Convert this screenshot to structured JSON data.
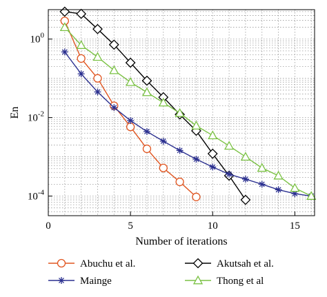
{
  "chart_data": {
    "type": "line",
    "xlabel": "Number of iterations",
    "ylabel": "En",
    "xlim": [
      0,
      16.2
    ],
    "ylim_log10": [
      -4.5,
      0.75
    ],
    "yscale": "log",
    "grid": true,
    "legend_position": "bottom",
    "x_ticks": [
      0,
      5,
      10,
      15
    ],
    "x_tick_labels": [
      "0",
      "5",
      "10",
      "15"
    ],
    "y_ticks": [
      1,
      0.01,
      0.0001
    ],
    "y_tick_labels": [
      {
        "base": "10",
        "exp": "0"
      },
      {
        "base": "10",
        "exp": "-2"
      },
      {
        "base": "10",
        "exp": "-4"
      }
    ],
    "series": [
      {
        "name": "Abuchu et al.",
        "color": "#e0541f",
        "marker": "circle",
        "x": [
          1,
          2,
          3,
          4,
          5,
          6,
          7,
          8,
          9
        ],
        "y": [
          2.9,
          0.32,
          0.1,
          0.02,
          0.0058,
          0.0016,
          0.00052,
          0.00023,
          9.5e-05
        ]
      },
      {
        "name": "Akutsah et al.",
        "color": "#000000",
        "marker": "diamond",
        "x": [
          1,
          2,
          3,
          4,
          5,
          6,
          7,
          8,
          9,
          10,
          11,
          12
        ],
        "y": [
          5.0,
          4.4,
          1.8,
          0.72,
          0.25,
          0.087,
          0.033,
          0.012,
          0.0046,
          0.0012,
          0.00033,
          8e-05
        ]
      },
      {
        "name": "Mainge",
        "color": "#2a2f8f",
        "marker": "star",
        "x": [
          1,
          2,
          3,
          4,
          5,
          6,
          7,
          8,
          9,
          10,
          11,
          12,
          13,
          14,
          15,
          16
        ],
        "y": [
          0.47,
          0.13,
          0.045,
          0.018,
          0.0084,
          0.0044,
          0.0025,
          0.00145,
          0.00087,
          0.00055,
          0.00036,
          0.00027,
          0.0002,
          0.000145,
          0.000115,
          0.0001
        ]
      },
      {
        "name": "Thong et al",
        "color": "#7ac143",
        "marker": "triangle",
        "x": [
          1,
          2,
          3,
          4,
          5,
          6,
          7,
          8,
          9,
          10,
          11,
          12,
          13,
          14,
          15,
          16
        ],
        "y": [
          2.0,
          0.7,
          0.35,
          0.16,
          0.08,
          0.044,
          0.024,
          0.013,
          0.0062,
          0.0035,
          0.0019,
          0.001,
          0.00052,
          0.00033,
          0.00016,
          0.0001
        ]
      }
    ]
  },
  "legend": {
    "items": [
      "Abuchu et al.",
      "Akutsah et al.",
      "Mainge",
      "Thong et al"
    ]
  }
}
